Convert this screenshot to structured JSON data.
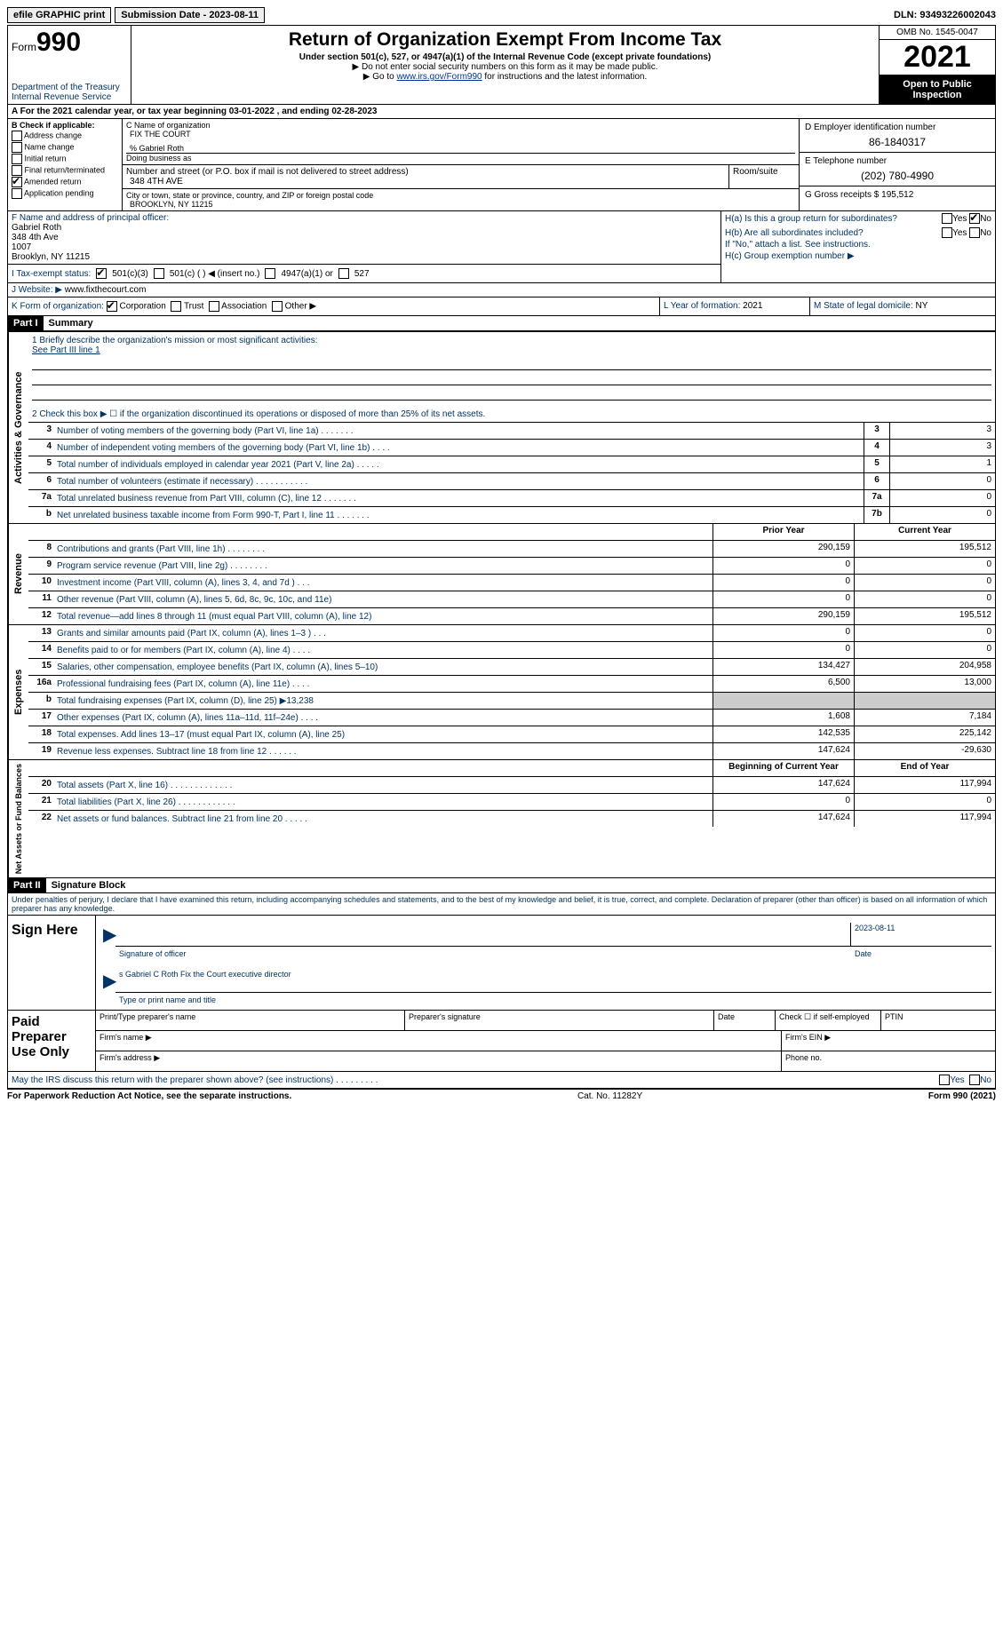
{
  "topbar": {
    "efile_label": "efile GRAPHIC print",
    "submission_label": "Submission Date - 2023-08-11",
    "dln": "DLN: 93493226002043"
  },
  "header": {
    "form_word": "Form",
    "form_num": "990",
    "dept": "Department of the Treasury",
    "irs": "Internal Revenue Service",
    "title": "Return of Organization Exempt From Income Tax",
    "subtitle": "Under section 501(c), 527, or 4947(a)(1) of the Internal Revenue Code (except private foundations)",
    "note1": "▶ Do not enter social security numbers on this form as it may be made public.",
    "note2_pre": "▶ Go to ",
    "note2_link": "www.irs.gov/Form990",
    "note2_post": " for instructions and the latest information.",
    "omb": "OMB No. 1545-0047",
    "year": "2021",
    "open": "Open to Public Inspection"
  },
  "yearline": "A For the 2021 calendar year, or tax year beginning 03-01-2022    , and ending 02-28-2023",
  "blockB": {
    "label": "B Check if applicable:",
    "items": [
      "Address change",
      "Name change",
      "Initial return",
      "Final return/terminated",
      "Amended return",
      "Application pending"
    ],
    "checked_idx": 4
  },
  "blockC": {
    "name_label": "C Name of organization",
    "name": "FIX THE COURT",
    "care_of": "% Gabriel Roth",
    "dba_label": "Doing business as",
    "addr_label": "Number and street (or P.O. box if mail is not delivered to street address)",
    "room_label": "Room/suite",
    "addr": "348 4TH AVE",
    "city_label": "City or town, state or province, country, and ZIP or foreign postal code",
    "city": "BROOKLYN, NY  11215"
  },
  "blockD": {
    "ein_label": "D Employer identification number",
    "ein": "86-1840317",
    "phone_label": "E Telephone number",
    "phone": "(202) 780-4990",
    "gross_label": "G Gross receipts $ ",
    "gross": "195,512"
  },
  "blockF": {
    "label": "F Name and address of principal officer:",
    "name": "Gabriel Roth",
    "addr1": "348 4th Ave",
    "addr2": "1007",
    "addr3": "Brooklyn, NY  11215"
  },
  "blockH": {
    "ha": "H(a)  Is this a group return for subordinates?",
    "hb": "H(b)  Are all subordinates included?",
    "note": "If \"No,\" attach a list. See instructions.",
    "hc": "H(c)  Group exemption number ▶",
    "yes": "Yes",
    "no": "No"
  },
  "rowI": {
    "label": "I  Tax-exempt status:",
    "opt1": "501(c)(3)",
    "opt2": "501(c) (  ) ◀ (insert no.)",
    "opt3": "4947(a)(1) or",
    "opt4": "527"
  },
  "rowJ": {
    "label": "J  Website: ▶",
    "val": "www.fixthecourt.com"
  },
  "rowK": {
    "k1_label": "K Form of organization:",
    "opts": [
      "Corporation",
      "Trust",
      "Association",
      "Other ▶"
    ],
    "k2_label": "L Year of formation: ",
    "k2_val": "2021",
    "k3_label": "M State of legal domicile: ",
    "k3_val": "NY"
  },
  "part1": {
    "hdr": "Part I",
    "title": "Summary",
    "mission_label": "1   Briefly describe the organization's mission or most significant activities:",
    "mission_val": "See Part III line 1",
    "line2": "2    Check this box ▶ ☐ if the organization discontinued its operations or disposed of more than 25% of its net assets."
  },
  "gov_lines": [
    {
      "n": "3",
      "desc": "Number of voting members of the governing body (Part VI, line 1a)   .    .    .    .    .    .    .",
      "box": "3",
      "cur": "3"
    },
    {
      "n": "4",
      "desc": "Number of independent voting members of the governing body (Part VI, line 1b)   .    .    .    .",
      "box": "4",
      "cur": "3"
    },
    {
      "n": "5",
      "desc": "Total number of individuals employed in calendar year 2021 (Part V, line 2a)   .    .    .    .    .",
      "box": "5",
      "cur": "1"
    },
    {
      "n": "6",
      "desc": "Total number of volunteers (estimate if necessary)   .    .    .    .    .    .    .    .    .    .    .",
      "box": "6",
      "cur": "0"
    },
    {
      "n": "7a",
      "desc": "Total unrelated business revenue from Part VIII, column (C), line 12   .    .    .    .    .    .    .",
      "box": "7a",
      "cur": "0"
    },
    {
      "n": "b",
      "desc": "Net unrelated business taxable income from Form 990-T, Part I, line 11   .    .    .    .    .    .    .",
      "box": "7b",
      "cur": "0"
    }
  ],
  "pycy_hdr": {
    "prior": "Prior Year",
    "current": "Current Year"
  },
  "rev_lines": [
    {
      "n": "8",
      "desc": "Contributions and grants (Part VIII, line 1h)   .    .    .    .    .    .    .    .",
      "py": "290,159",
      "cy": "195,512"
    },
    {
      "n": "9",
      "desc": "Program service revenue (Part VIII, line 2g)   .    .    .    .    .    .    .    .",
      "py": "0",
      "cy": "0"
    },
    {
      "n": "10",
      "desc": "Investment income (Part VIII, column (A), lines 3, 4, and 7d )   .    .    .",
      "py": "0",
      "cy": "0"
    },
    {
      "n": "11",
      "desc": "Other revenue (Part VIII, column (A), lines 5, 6d, 8c, 9c, 10c, and 11e)",
      "py": "0",
      "cy": "0"
    },
    {
      "n": "12",
      "desc": "Total revenue—add lines 8 through 11 (must equal Part VIII, column (A), line 12)",
      "py": "290,159",
      "cy": "195,512"
    }
  ],
  "exp_lines": [
    {
      "n": "13",
      "desc": "Grants and similar amounts paid (Part IX, column (A), lines 1–3 )   .    .    .",
      "py": "0",
      "cy": "0"
    },
    {
      "n": "14",
      "desc": "Benefits paid to or for members (Part IX, column (A), line 4)   .    .    .    .",
      "py": "0",
      "cy": "0"
    },
    {
      "n": "15",
      "desc": "Salaries, other compensation, employee benefits (Part IX, column (A), lines 5–10)",
      "py": "134,427",
      "cy": "204,958"
    },
    {
      "n": "16a",
      "desc": "Professional fundraising fees (Part IX, column (A), line 11e)   .    .    .    .",
      "py": "6,500",
      "cy": "13,000"
    },
    {
      "n": "b",
      "desc": "Total fundraising expenses (Part IX, column (D), line 25) ▶13,238",
      "py": "",
      "cy": "",
      "shaded": true
    },
    {
      "n": "17",
      "desc": "Other expenses (Part IX, column (A), lines 11a–11d, 11f–24e)   .    .    .    .",
      "py": "1,608",
      "cy": "7,184"
    },
    {
      "n": "18",
      "desc": "Total expenses. Add lines 13–17 (must equal Part IX, column (A), line 25)",
      "py": "142,535",
      "cy": "225,142"
    },
    {
      "n": "19",
      "desc": "Revenue less expenses. Subtract line 18 from line 12   .    .    .    .    .    .",
      "py": "147,624",
      "cy": "-29,630"
    }
  ],
  "na_hdr": {
    "begin": "Beginning of Current Year",
    "end": "End of Year"
  },
  "na_lines": [
    {
      "n": "20",
      "desc": "Total assets (Part X, line 16)   .    .    .    .    .    .    .    .    .    .    .    .    .",
      "py": "147,624",
      "cy": "117,994"
    },
    {
      "n": "21",
      "desc": "Total liabilities (Part X, line 26)   .    .    .    .    .    .    .    .    .    .    .    .",
      "py": "0",
      "cy": "0"
    },
    {
      "n": "22",
      "desc": "Net assets or fund balances. Subtract line 21 from line 20   .    .    .    .    .",
      "py": "147,624",
      "cy": "117,994"
    }
  ],
  "part2": {
    "hdr": "Part II",
    "title": "Signature Block",
    "text": "Under penalties of perjury, I declare that I have examined this return, including accompanying schedules and statements, and to the best of my knowledge and belief, it is true, correct, and complete. Declaration of preparer (other than officer) is based on all information of which preparer has any knowledge."
  },
  "sign": {
    "label": "Sign Here",
    "sig_officer": "Signature of officer",
    "date": "2023-08-11",
    "date_lbl": "Date",
    "name": "s Gabriel C Roth  Fix the Court executive director",
    "name_lbl": "Type or print name and title"
  },
  "paid": {
    "label": "Paid Preparer Use Only",
    "c1": "Print/Type preparer's name",
    "c2": "Preparer's signature",
    "c3": "Date",
    "c4": "Check ☐ if self-employed",
    "c5": "PTIN",
    "firm_name": "Firm's name   ▶",
    "firm_ein": "Firm's EIN ▶",
    "firm_addr": "Firm's address ▶",
    "phone": "Phone no."
  },
  "discuss": "May the IRS discuss this return with the preparer shown above? (see instructions)   .    .    .    .    .    .    .    .    .",
  "footer": {
    "left": "For Paperwork Reduction Act Notice, see the separate instructions.",
    "mid": "Cat. No. 11282Y",
    "right": "Form 990 (2021)"
  },
  "vlabels": {
    "gov": "Activities & Governance",
    "rev": "Revenue",
    "exp": "Expenses",
    "na": "Net Assets or Fund Balances"
  }
}
